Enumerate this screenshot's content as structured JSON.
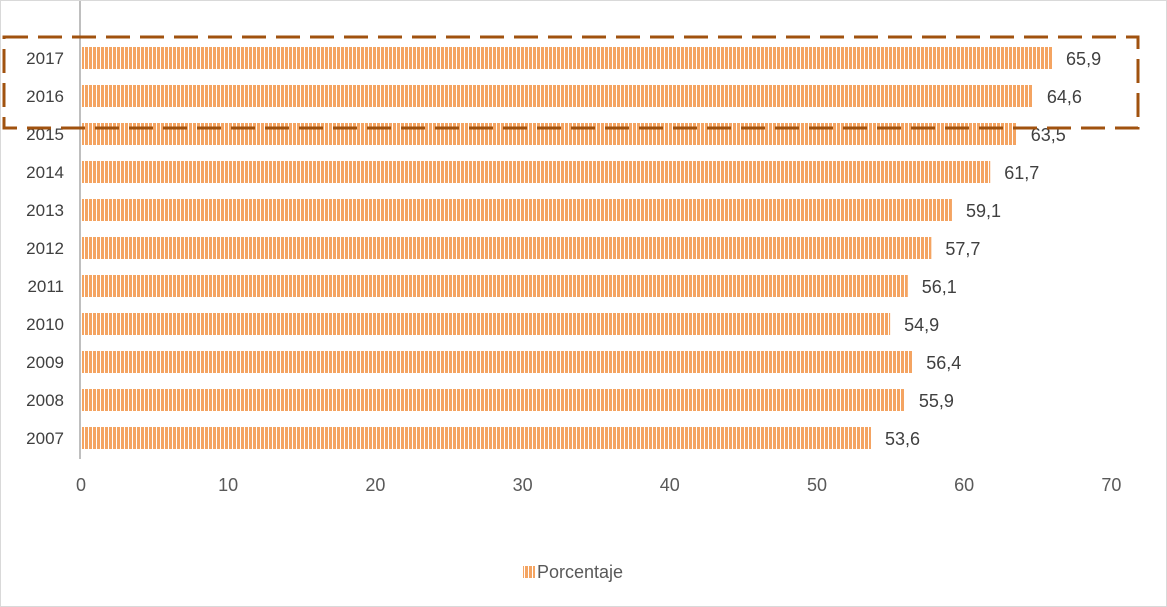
{
  "chart_data": {
    "type": "bar",
    "orientation": "horizontal",
    "categories": [
      "2017",
      "2016",
      "2015",
      "2014",
      "2013",
      "2012",
      "2011",
      "2010",
      "2009",
      "2008",
      "2007"
    ],
    "series": [
      {
        "name": "Porcentaje",
        "values": [
          65.9,
          64.6,
          63.5,
          61.7,
          59.1,
          57.7,
          56.1,
          54.9,
          56.4,
          55.9,
          53.6
        ],
        "data_labels": [
          "65,9",
          "64,6",
          "63,5",
          "61,7",
          "59,1",
          "57,7",
          "56,1",
          "54,9",
          "56,4",
          "55,9",
          "53,6"
        ]
      }
    ],
    "xlim": [
      0,
      70
    ],
    "x_ticks": [
      0,
      10,
      20,
      30,
      40,
      50,
      60,
      70
    ],
    "x_tick_labels": [
      "0",
      "10",
      "20",
      "30",
      "40",
      "50",
      "60",
      "70"
    ],
    "title": "",
    "xlabel": "",
    "ylabel": "",
    "grid": false,
    "legend": "bottom",
    "highlight": {
      "categories": [
        "2017",
        "2016"
      ],
      "style": "dashed-box",
      "color": "#a0520f"
    },
    "colors": {
      "bar": "#f4a462",
      "bar_stripe": "#ffffff",
      "axis": "#bfbfbf"
    }
  }
}
